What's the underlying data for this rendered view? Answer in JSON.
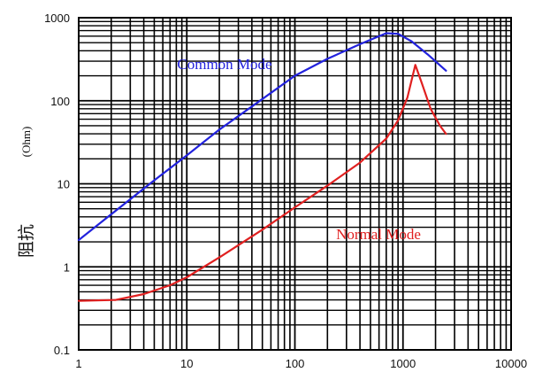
{
  "chart_data": {
    "type": "line",
    "title": "",
    "xlabel": "",
    "ylabel": "阻抗",
    "yunit": "(Ohm)",
    "xscale": "log",
    "yscale": "log",
    "xlim": [
      1,
      10000
    ],
    "ylim": [
      0.1,
      1000
    ],
    "xticks": [
      "1",
      "10",
      "100",
      "1000",
      "10000"
    ],
    "yticks": [
      "0.1",
      "1",
      "10",
      "100",
      "1000"
    ],
    "grid": true,
    "legend": "none",
    "series": [
      {
        "name": "Common Mode",
        "color": "#2222dd",
        "x": [
          1,
          2,
          5,
          10,
          20,
          50,
          100,
          200,
          400,
          700,
          900,
          1200,
          1700,
          2500
        ],
        "y": [
          2.1,
          4.3,
          11,
          22,
          45,
          105,
          200,
          320,
          480,
          650,
          640,
          520,
          360,
          230
        ]
      },
      {
        "name": "Normal Mode",
        "color": "#e02020",
        "x": [
          1,
          2.2,
          4,
          7,
          10,
          20,
          50,
          100,
          200,
          400,
          700,
          900,
          1100,
          1300,
          1500,
          1800,
          2200,
          2500
        ],
        "y": [
          0.39,
          0.4,
          0.47,
          0.6,
          0.75,
          1.3,
          2.8,
          5.2,
          9.5,
          18,
          35,
          58,
          110,
          270,
          160,
          80,
          50,
          40
        ]
      }
    ],
    "annotations": [
      {
        "text": "Common Mode",
        "series": 0
      },
      {
        "text": "Normal Mode",
        "series": 1
      }
    ]
  }
}
